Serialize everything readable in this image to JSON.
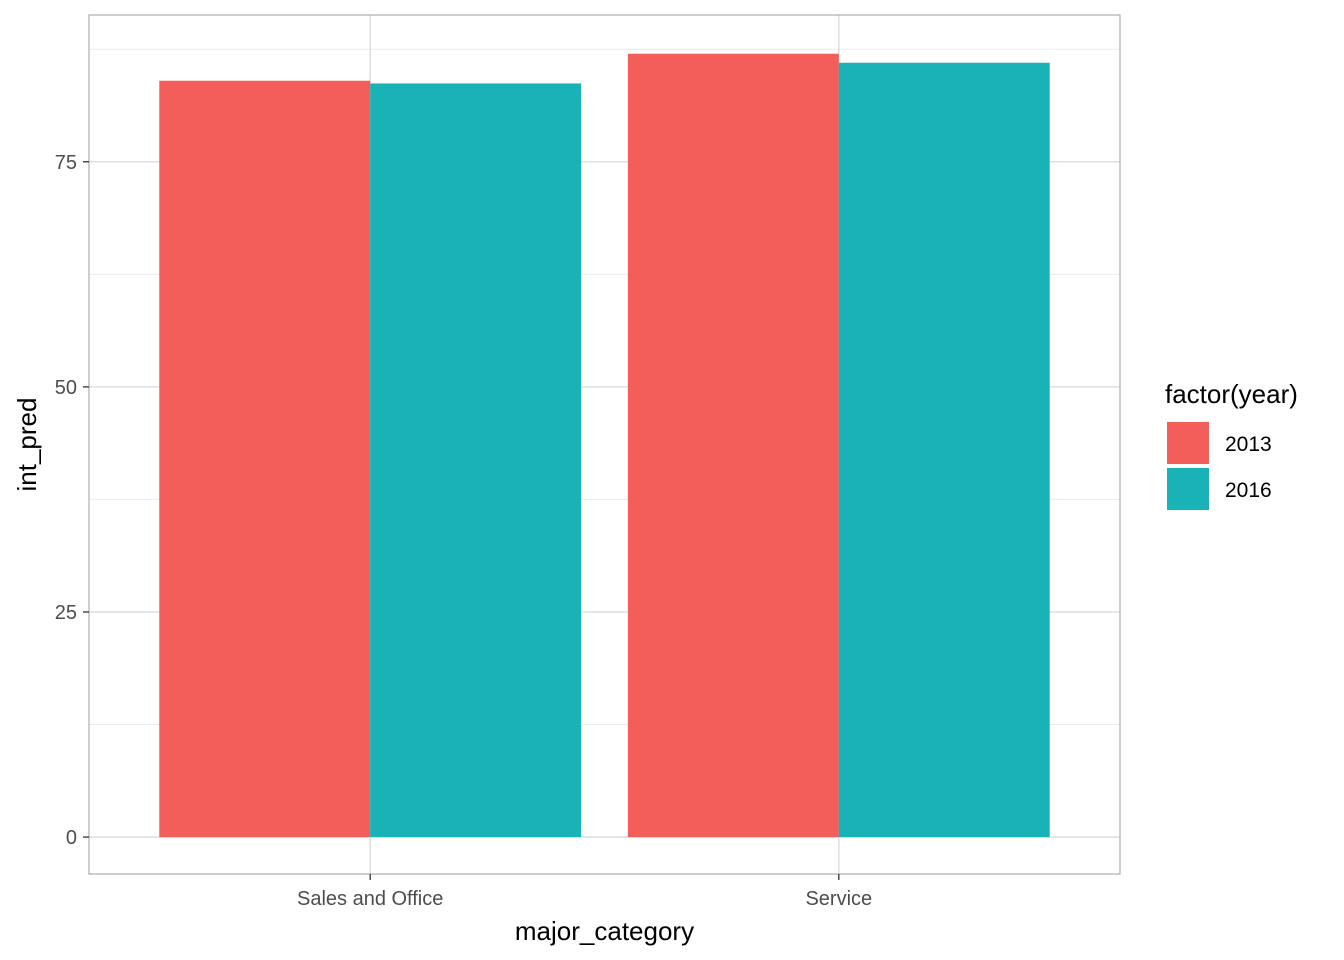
{
  "chart_data": {
    "type": "bar",
    "title": "",
    "xlabel": "major_category",
    "ylabel": "int_pred",
    "categories": [
      "Sales and Office",
      "Service"
    ],
    "series": [
      {
        "name": "2013",
        "color": "#F35E5A",
        "values": [
          84.0,
          87.0
        ]
      },
      {
        "name": "2016",
        "color": "#19B3B7",
        "values": [
          83.7,
          86.0
        ]
      }
    ],
    "ylim": [
      -4.1,
      91.3
    ],
    "yticks": [
      0,
      25,
      50,
      75
    ],
    "yticks_labels": [
      "0",
      "25",
      "50",
      "75"
    ],
    "grid": true,
    "legend": {
      "title": "factor(year)",
      "position": "right"
    }
  }
}
